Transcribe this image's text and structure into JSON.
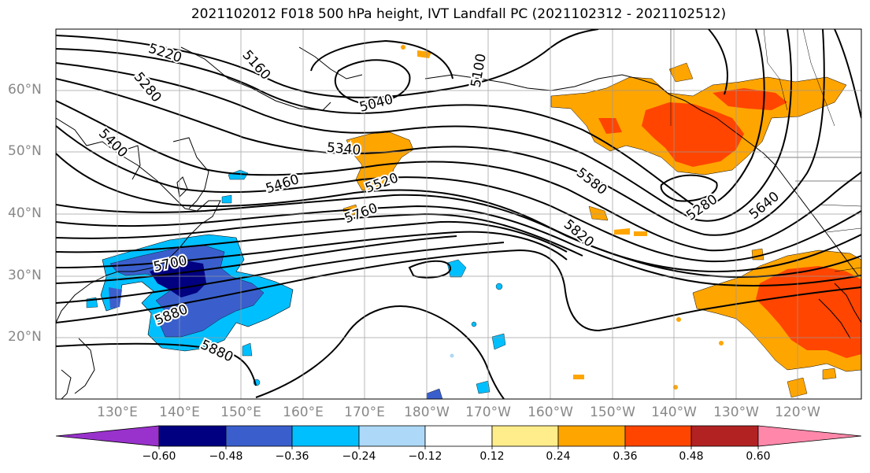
{
  "title": "2021102012 F018 500 hPa height, IVT Landfall PC (2021102312 - 2021102512)",
  "lat_labels": [
    "60°N",
    "50°N",
    "40°N",
    "30°N",
    "20°N"
  ],
  "lon_labels": [
    "130°E",
    "140°E",
    "150°E",
    "160°E",
    "170°E",
    "180°W",
    "170°W",
    "160°W",
    "150°W",
    "140°W",
    "130°W",
    "120°W"
  ],
  "contour_labels": [
    "5220",
    "5160",
    "5100",
    "5040",
    "5280",
    "5400",
    "5340",
    "5520",
    "5460",
    "5760",
    "5580",
    "5280",
    "5640",
    "5820",
    "5700",
    "5880",
    "5880"
  ],
  "colorbar": {
    "tick_labels": [
      "−0.60",
      "−0.48",
      "−0.36",
      "−0.24",
      "−0.12",
      "0.12",
      "0.24",
      "0.36",
      "0.48",
      "0.60"
    ],
    "colors": [
      "#9932cc",
      "#000080",
      "#3a5fcd",
      "#00bfff",
      "#add8f7",
      "#ffffff",
      "#ffec8b",
      "#ffa500",
      "#ff4500",
      "#b22222",
      "#ff88aa"
    ]
  },
  "legend_colors": {
    "contour": "#000000",
    "grid": "#aaaaaa",
    "coast": "#000000"
  }
}
